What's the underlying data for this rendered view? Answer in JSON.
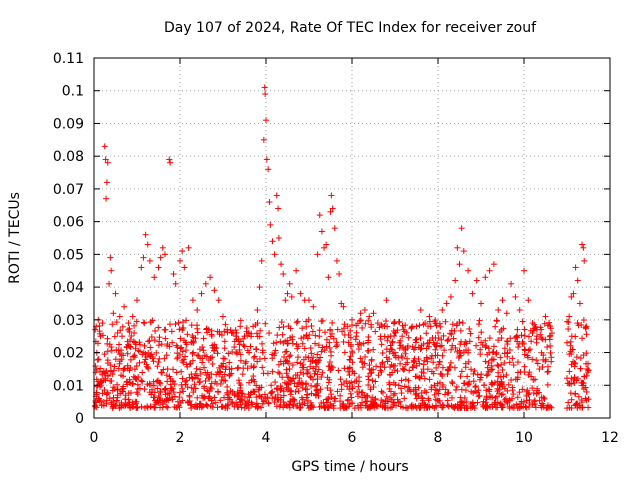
{
  "chart_data": {
    "type": "scatter",
    "title": "Day 107 of 2024, Rate Of TEC Index for receiver zouf",
    "xlabel": "GPS time / hours",
    "ylabel": "ROTI / TECUs",
    "xlim": [
      0,
      12
    ],
    "ylim": [
      0,
      0.11
    ],
    "xticks": [
      0,
      2,
      4,
      6,
      8,
      10,
      12
    ],
    "xtick_labels": [
      "0",
      "2",
      "4",
      "6",
      "8",
      "10",
      "12"
    ],
    "yticks": [
      0,
      0.01,
      0.02,
      0.03,
      0.04,
      0.05,
      0.06,
      0.07,
      0.08,
      0.09,
      0.1,
      0.11
    ],
    "ytick_labels": [
      "0",
      "0.01",
      "0.02",
      "0.03",
      "0.04",
      "0.05",
      "0.06",
      "0.07",
      "0.08",
      "0.09",
      "0.1",
      "0.11"
    ],
    "grid": true,
    "marker": "+",
    "color": "#ff0000",
    "series": [
      {
        "name": "ROTI",
        "points": [
          [
            0.05,
            0.028
          ],
          [
            0.1,
            0.03
          ],
          [
            0.15,
            0.025
          ],
          [
            0.2,
            0.029
          ],
          [
            0.25,
            0.083
          ],
          [
            0.27,
            0.079
          ],
          [
            0.28,
            0.067
          ],
          [
            0.3,
            0.072
          ],
          [
            0.32,
            0.078
          ],
          [
            0.35,
            0.041
          ],
          [
            0.38,
            0.049
          ],
          [
            0.4,
            0.045
          ],
          [
            0.45,
            0.032
          ],
          [
            0.5,
            0.038
          ],
          [
            0.55,
            0.026
          ],
          [
            0.6,
            0.031
          ],
          [
            0.7,
            0.034
          ],
          [
            0.8,
            0.029
          ],
          [
            0.9,
            0.031
          ],
          [
            1.0,
            0.036
          ],
          [
            1.1,
            0.046
          ],
          [
            1.15,
            0.049
          ],
          [
            1.2,
            0.056
          ],
          [
            1.25,
            0.053
          ],
          [
            1.3,
            0.048
          ],
          [
            1.4,
            0.043
          ],
          [
            1.5,
            0.046
          ],
          [
            1.55,
            0.049
          ],
          [
            1.6,
            0.052
          ],
          [
            1.65,
            0.05
          ],
          [
            1.75,
            0.079
          ],
          [
            1.77,
            0.078
          ],
          [
            1.85,
            0.044
          ],
          [
            1.9,
            0.041
          ],
          [
            2.0,
            0.048
          ],
          [
            2.05,
            0.051
          ],
          [
            2.1,
            0.046
          ],
          [
            2.2,
            0.052
          ],
          [
            2.3,
            0.036
          ],
          [
            2.4,
            0.033
          ],
          [
            2.5,
            0.038
          ],
          [
            2.6,
            0.041
          ],
          [
            2.7,
            0.043
          ],
          [
            2.8,
            0.039
          ],
          [
            2.9,
            0.036
          ],
          [
            3.0,
            0.031
          ],
          [
            3.1,
            0.027
          ],
          [
            3.2,
            0.026
          ],
          [
            3.3,
            0.025
          ],
          [
            3.4,
            0.028
          ],
          [
            3.5,
            0.025
          ],
          [
            3.6,
            0.026
          ],
          [
            3.7,
            0.028
          ],
          [
            3.8,
            0.033
          ],
          [
            3.85,
            0.04
          ],
          [
            3.9,
            0.048
          ],
          [
            3.95,
            0.085
          ],
          [
            3.97,
            0.101
          ],
          [
            3.98,
            0.099
          ],
          [
            4.0,
            0.091
          ],
          [
            4.02,
            0.079
          ],
          [
            4.05,
            0.076
          ],
          [
            4.08,
            0.066
          ],
          [
            4.1,
            0.059
          ],
          [
            4.15,
            0.054
          ],
          [
            4.2,
            0.05
          ],
          [
            4.25,
            0.068
          ],
          [
            4.28,
            0.064
          ],
          [
            4.3,
            0.055
          ],
          [
            4.35,
            0.047
          ],
          [
            4.4,
            0.044
          ],
          [
            4.45,
            0.036
          ],
          [
            4.5,
            0.038
          ],
          [
            4.55,
            0.041
          ],
          [
            4.6,
            0.037
          ],
          [
            4.7,
            0.045
          ],
          [
            4.8,
            0.038
          ],
          [
            4.9,
            0.036
          ],
          [
            5.0,
            0.036
          ],
          [
            5.1,
            0.034
          ],
          [
            5.2,
            0.05
          ],
          [
            5.25,
            0.062
          ],
          [
            5.3,
            0.057
          ],
          [
            5.35,
            0.052
          ],
          [
            5.4,
            0.053
          ],
          [
            5.45,
            0.043
          ],
          [
            5.5,
            0.063
          ],
          [
            5.52,
            0.068
          ],
          [
            5.55,
            0.064
          ],
          [
            5.6,
            0.058
          ],
          [
            5.65,
            0.048
          ],
          [
            5.7,
            0.044
          ],
          [
            5.75,
            0.035
          ],
          [
            5.8,
            0.034
          ],
          [
            5.9,
            0.028
          ],
          [
            6.0,
            0.03
          ],
          [
            6.1,
            0.025
          ],
          [
            6.2,
            0.032
          ],
          [
            6.3,
            0.033
          ],
          [
            6.4,
            0.031
          ],
          [
            6.5,
            0.032
          ],
          [
            6.6,
            0.029
          ],
          [
            6.7,
            0.028
          ],
          [
            6.8,
            0.036
          ],
          [
            6.9,
            0.025
          ],
          [
            7.0,
            0.026
          ],
          [
            7.1,
            0.023
          ],
          [
            7.2,
            0.027
          ],
          [
            7.3,
            0.022
          ],
          [
            7.4,
            0.028
          ],
          [
            7.5,
            0.024
          ],
          [
            7.6,
            0.033
          ],
          [
            7.7,
            0.029
          ],
          [
            7.8,
            0.031
          ],
          [
            7.9,
            0.023
          ],
          [
            8.0,
            0.026
          ],
          [
            8.1,
            0.033
          ],
          [
            8.2,
            0.035
          ],
          [
            8.3,
            0.037
          ],
          [
            8.4,
            0.042
          ],
          [
            8.45,
            0.052
          ],
          [
            8.5,
            0.047
          ],
          [
            8.55,
            0.058
          ],
          [
            8.6,
            0.051
          ],
          [
            8.7,
            0.045
          ],
          [
            8.8,
            0.038
          ],
          [
            8.9,
            0.042
          ],
          [
            9.0,
            0.035
          ],
          [
            9.1,
            0.043
          ],
          [
            9.2,
            0.045
          ],
          [
            9.3,
            0.047
          ],
          [
            9.4,
            0.033
          ],
          [
            9.5,
            0.036
          ],
          [
            9.6,
            0.032
          ],
          [
            9.7,
            0.041
          ],
          [
            9.8,
            0.037
          ],
          [
            9.9,
            0.033
          ],
          [
            10.0,
            0.045
          ],
          [
            10.1,
            0.036
          ],
          [
            10.2,
            0.029
          ],
          [
            10.3,
            0.025
          ],
          [
            10.4,
            0.027
          ],
          [
            10.5,
            0.031
          ],
          [
            10.6,
            0.024
          ],
          [
            11.0,
            0.023
          ],
          [
            11.05,
            0.031
          ],
          [
            11.1,
            0.037
          ],
          [
            11.15,
            0.038
          ],
          [
            11.2,
            0.046
          ],
          [
            11.25,
            0.042
          ],
          [
            11.3,
            0.035
          ],
          [
            11.35,
            0.053
          ],
          [
            11.38,
            0.052
          ],
          [
            11.4,
            0.048
          ],
          [
            11.45,
            0.028
          ]
        ]
      }
    ]
  }
}
